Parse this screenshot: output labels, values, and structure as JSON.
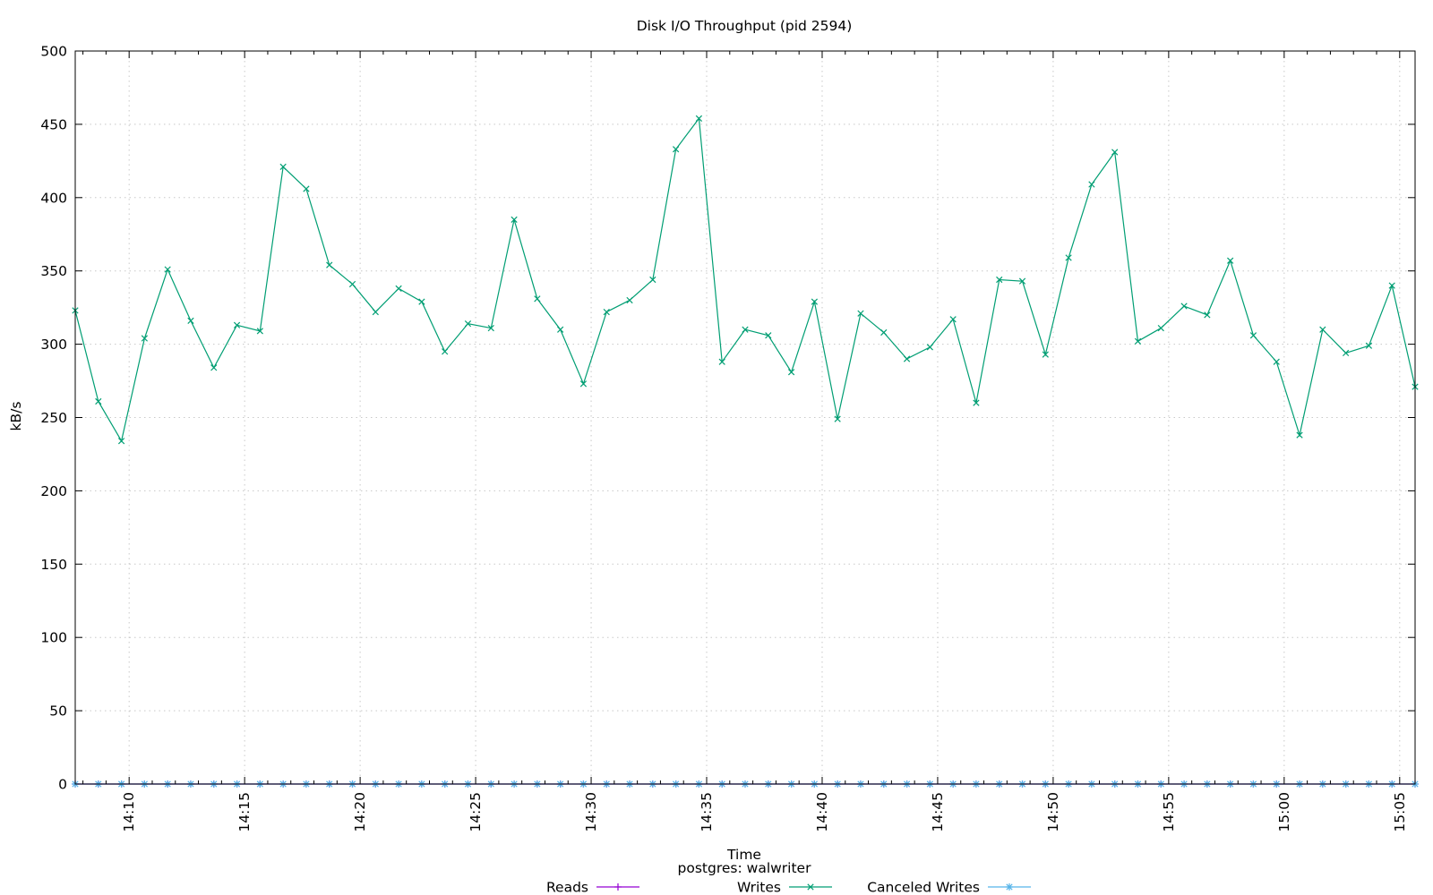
{
  "chart_data": {
    "type": "line",
    "title": "Disk I/O Throughput (pid 2594)",
    "xlabel": "Time",
    "subtitle": "postgres: walwriter",
    "ylabel": "kB/s",
    "ylim": [
      0,
      500
    ],
    "yticks": [
      0,
      50,
      100,
      150,
      200,
      250,
      300,
      350,
      400,
      450,
      500
    ],
    "xlim": [
      "14:07:40",
      "15:05:40"
    ],
    "xtick_labels": [
      "14:10",
      "14:15",
      "14:20",
      "14:25",
      "14:30",
      "14:35",
      "14:40",
      "14:45",
      "14:50",
      "14:55",
      "15:00",
      "15:05"
    ],
    "grid": true,
    "legend_position": "bottom",
    "x": [
      "14:07:40",
      "14:08:40",
      "14:09:40",
      "14:10:40",
      "14:11:40",
      "14:12:40",
      "14:13:40",
      "14:14:40",
      "14:15:40",
      "14:16:40",
      "14:17:40",
      "14:18:40",
      "14:19:40",
      "14:20:40",
      "14:21:40",
      "14:22:40",
      "14:23:40",
      "14:24:40",
      "14:25:40",
      "14:26:40",
      "14:27:40",
      "14:28:40",
      "14:29:40",
      "14:30:40",
      "14:31:40",
      "14:32:40",
      "14:33:40",
      "14:34:40",
      "14:35:40",
      "14:36:40",
      "14:37:40",
      "14:38:40",
      "14:39:40",
      "14:40:40",
      "14:41:40",
      "14:42:40",
      "14:43:40",
      "14:44:40",
      "14:45:40",
      "14:46:40",
      "14:47:40",
      "14:48:40",
      "14:49:40",
      "14:50:40",
      "14:51:40",
      "14:52:40",
      "14:53:40",
      "14:54:40",
      "14:55:40",
      "14:56:40",
      "14:57:40",
      "14:58:40",
      "14:59:40",
      "15:00:40",
      "15:01:40",
      "15:02:40",
      "15:03:40",
      "15:04:40",
      "15:05:40"
    ],
    "series": [
      {
        "name": "Reads",
        "color": "#9400d3",
        "marker": "plus",
        "values": [
          0,
          0,
          0,
          0,
          0,
          0,
          0,
          0,
          0,
          0,
          0,
          0,
          0,
          0,
          0,
          0,
          0,
          0,
          0,
          0,
          0,
          0,
          0,
          0,
          0,
          0,
          0,
          0,
          0,
          0,
          0,
          0,
          0,
          0,
          0,
          0,
          0,
          0,
          0,
          0,
          0,
          0,
          0,
          0,
          0,
          0,
          0,
          0,
          0,
          0,
          0,
          0,
          0,
          0,
          0,
          0,
          0,
          0,
          0
        ]
      },
      {
        "name": "Writes",
        "color": "#009e73",
        "marker": "cross",
        "values": [
          323,
          261,
          234,
          304,
          351,
          316,
          284,
          313,
          309,
          421,
          406,
          354,
          341,
          322,
          338,
          329,
          295,
          314,
          311,
          385,
          331,
          310,
          273,
          322,
          330,
          344,
          433,
          454,
          288,
          310,
          306,
          281,
          329,
          249,
          321,
          308,
          290,
          298,
          317,
          260,
          344,
          343,
          293,
          359,
          409,
          431,
          302,
          311,
          326,
          320,
          357,
          306,
          288,
          238,
          310,
          294,
          299,
          340,
          271
        ]
      },
      {
        "name": "Canceled Writes",
        "color": "#56b4e9",
        "marker": "star",
        "values": [
          0,
          0,
          0,
          0,
          0,
          0,
          0,
          0,
          0,
          0,
          0,
          0,
          0,
          0,
          0,
          0,
          0,
          0,
          0,
          0,
          0,
          0,
          0,
          0,
          0,
          0,
          0,
          0,
          0,
          0,
          0,
          0,
          0,
          0,
          0,
          0,
          0,
          0,
          0,
          0,
          0,
          0,
          0,
          0,
          0,
          0,
          0,
          0,
          0,
          0,
          0,
          0,
          0,
          0,
          0,
          0,
          0,
          0,
          0
        ]
      }
    ]
  }
}
